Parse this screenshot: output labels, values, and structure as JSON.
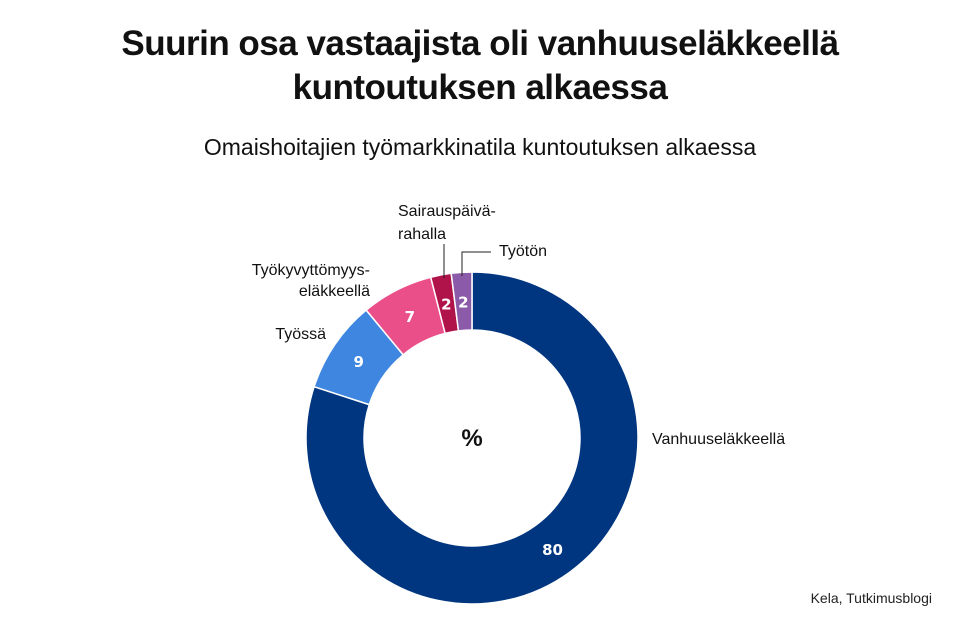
{
  "title_lines": [
    "Suurin osa vastaajista oli vanhuuseläkkeellä",
    "kuntoutuksen alkaessa"
  ],
  "subtitle": "Omaishoitajien työmarkkinatila kuntoutuksen alkaessa",
  "source": "Kela, Tutkimusblogi",
  "chart_data": {
    "type": "pie",
    "donut": true,
    "center_label": "%",
    "title": "Suurin osa vastaajista oli vanhuuseläkkeellä kuntoutuksen alkaessa",
    "subtitle": "Omaishoitajien työmarkkinatila kuntoutuksen alkaessa",
    "unit": "%",
    "slices": [
      {
        "label": "Vanhuuseläkkeellä",
        "value": 80,
        "color": "#003580"
      },
      {
        "label": "Työssä",
        "value": 9,
        "color": "#3f86e0"
      },
      {
        "label": "Työkyvyttömyys-eläkkeellä",
        "label_lines": [
          "Työkyvyttömyys-",
          "eläkkeellä"
        ],
        "value": 7,
        "color": "#ea4f8a"
      },
      {
        "label": "Sairauspäivä-rahalla",
        "label_lines": [
          "Sairauspäivä-",
          "rahalla"
        ],
        "value": 2,
        "color": "#b0134a"
      },
      {
        "label": "Työtön",
        "value": 2,
        "color": "#8b5aa8"
      }
    ]
  }
}
